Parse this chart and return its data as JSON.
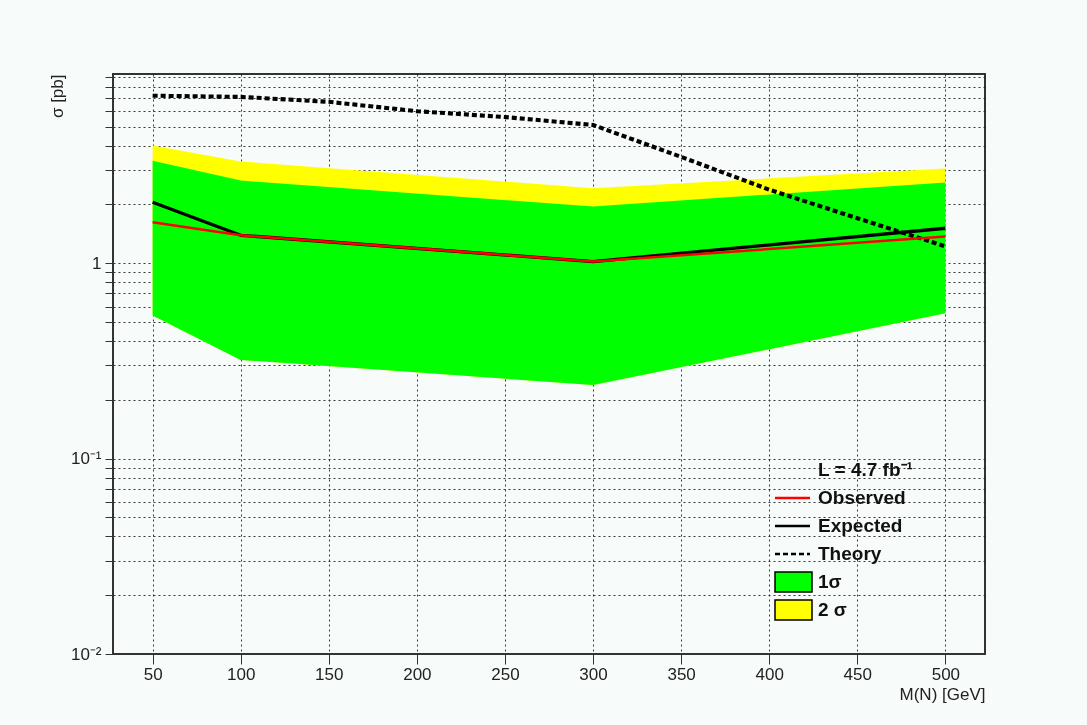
{
  "chart_data": {
    "type": "line",
    "xlabel": "M(N) [GeV]",
    "ylabel": "σ [pb]",
    "legend_title": "L = 4.7 fb⁻¹",
    "legend": "bottom right",
    "grid": true,
    "log": "y",
    "xlim": [
      27.5,
      522.5
    ],
    "xticks": [
      50,
      100,
      150,
      200,
      250,
      300,
      350,
      400,
      450,
      500
    ],
    "ylim": [
      0.01,
      9.3
    ],
    "yticks": [
      {
        "value": 0.01,
        "label": "10⁻²"
      },
      {
        "value": 0.02,
        "label": null
      },
      {
        "value": 0.03,
        "label": null
      },
      {
        "value": 0.04,
        "label": null
      },
      {
        "value": 0.05,
        "label": null
      },
      {
        "value": 0.06,
        "label": null
      },
      {
        "value": 0.07,
        "label": null
      },
      {
        "value": 0.08,
        "label": null
      },
      {
        "value": 0.09,
        "label": null
      },
      {
        "value": 0.1,
        "label": "10⁻¹"
      },
      {
        "value": 0.2,
        "label": null
      },
      {
        "value": 0.3,
        "label": null
      },
      {
        "value": 0.4,
        "label": null
      },
      {
        "value": 0.5,
        "label": null
      },
      {
        "value": 0.6,
        "label": null
      },
      {
        "value": 0.7,
        "label": null
      },
      {
        "value": 0.8,
        "label": null
      },
      {
        "value": 0.9,
        "label": null
      },
      1,
      {
        "value": 2,
        "label": null
      },
      {
        "value": 3,
        "label": null
      },
      {
        "value": 4,
        "label": null
      },
      {
        "value": 5,
        "label": null
      },
      {
        "value": 6,
        "label": null
      },
      {
        "value": 7,
        "label": null
      },
      {
        "value": 8,
        "label": null
      },
      {
        "value": 9,
        "label": null
      }
    ],
    "series": [
      {
        "name": "Observed",
        "type": "line",
        "color": "#ff0000",
        "line_style": "solid",
        "x": [
          50,
          100,
          300,
          500
        ],
        "values": [
          1.62,
          1.39,
          1.02,
          1.37
        ]
      },
      {
        "name": "Expected",
        "type": "line",
        "color": "#000000",
        "line_style": "solid",
        "x": [
          50,
          100,
          300,
          500
        ],
        "values": [
          2.05,
          1.39,
          1.02,
          1.51
        ]
      },
      {
        "name": "Theory",
        "type": "line",
        "color": "#000000",
        "line_style": "dashed",
        "x": [
          50,
          100,
          150,
          200,
          250,
          300,
          350,
          400,
          450,
          500
        ],
        "values": [
          7.2,
          7.1,
          6.7,
          6.0,
          5.6,
          5.1,
          3.5,
          2.38,
          1.7,
          1.22
        ]
      },
      {
        "name": "1σ",
        "type": "area",
        "color": "#00ff00",
        "x": [
          50,
          100,
          300,
          500
        ],
        "values": [
          null,
          null,
          null,
          null
        ],
        "lower": [
          0.54,
          0.32,
          0.238,
          0.554
        ],
        "upper": [
          3.35,
          2.65,
          1.95,
          2.59
        ]
      },
      {
        "name": "2 σ",
        "type": "area",
        "color": "#ffff00",
        "x": [
          50,
          100,
          300,
          500
        ],
        "values": [
          null,
          null,
          null,
          null
        ],
        "lower": [
          0.54,
          0.32,
          0.238,
          0.554
        ],
        "upper": [
          4.0,
          3.32,
          2.42,
          3.05
        ]
      }
    ]
  }
}
